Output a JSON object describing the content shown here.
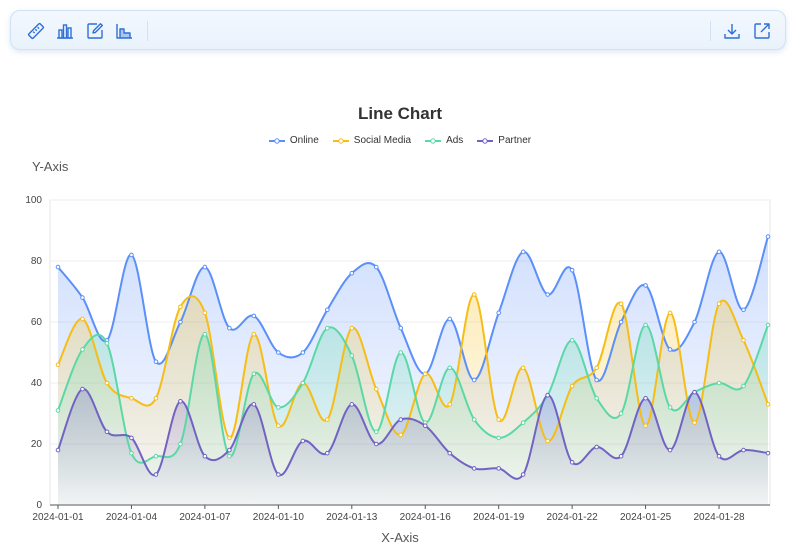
{
  "toolbar": {
    "left_icons": [
      "ruler-icon",
      "bar-chart-icon",
      "edit-icon",
      "area-chart-icon"
    ],
    "right_icons": [
      "download-icon",
      "open-external-icon"
    ],
    "icon_color": "#2f6fd6"
  },
  "chart_data": {
    "type": "line",
    "title": "Line Chart",
    "xlabel": "X-Axis",
    "ylabel": "Y-Axis",
    "ylim": [
      0,
      100
    ],
    "yticks": [
      0,
      20,
      40,
      60,
      80,
      100
    ],
    "grid": true,
    "smooth": true,
    "area_fill": true,
    "legend_position": "top-center",
    "x": [
      "2024-01-01",
      "2024-01-02",
      "2024-01-03",
      "2024-01-04",
      "2024-01-05",
      "2024-01-06",
      "2024-01-07",
      "2024-01-08",
      "2024-01-09",
      "2024-01-10",
      "2024-01-11",
      "2024-01-12",
      "2024-01-13",
      "2024-01-14",
      "2024-01-15",
      "2024-01-16",
      "2024-01-17",
      "2024-01-18",
      "2024-01-19",
      "2024-01-20",
      "2024-01-21",
      "2024-01-22",
      "2024-01-23",
      "2024-01-24",
      "2024-01-25",
      "2024-01-26",
      "2024-01-27",
      "2024-01-28",
      "2024-01-29",
      "2024-01-30"
    ],
    "xticks": [
      "2024-01-01",
      "2024-01-04",
      "2024-01-07",
      "2024-01-10",
      "2024-01-13",
      "2024-01-16",
      "2024-01-19",
      "2024-01-22",
      "2024-01-25",
      "2024-01-28"
    ],
    "series": [
      {
        "name": "Online",
        "color": "#5b8ff9",
        "values": [
          78,
          68,
          54,
          82,
          47,
          60,
          78,
          58,
          62,
          50,
          50,
          64,
          76,
          78,
          58,
          43,
          61,
          41,
          63,
          83,
          69,
          77,
          41,
          60,
          72,
          51,
          60,
          83,
          64,
          88
        ]
      },
      {
        "name": "Social Media",
        "color": "#f6bd16",
        "values": [
          46,
          61,
          40,
          35,
          35,
          65,
          63,
          22,
          56,
          26,
          40,
          28,
          58,
          38,
          23,
          43,
          33,
          69,
          28,
          45,
          21,
          39,
          45,
          66,
          26,
          63,
          27,
          66,
          54,
          33
        ]
      },
      {
        "name": "Ads",
        "color": "#5ad8a6",
        "values": [
          31,
          51,
          53,
          17,
          16,
          20,
          56,
          16,
          43,
          32,
          40,
          58,
          49,
          24,
          50,
          27,
          45,
          28,
          22,
          27,
          36,
          54,
          35,
          30,
          59,
          32,
          37,
          40,
          39,
          59
        ]
      },
      {
        "name": "Partner",
        "color": "#7262c4",
        "values": [
          18,
          38,
          24,
          22,
          10,
          34,
          16,
          18,
          33,
          10,
          21,
          17,
          33,
          20,
          28,
          26,
          17,
          12,
          12,
          10,
          36,
          14,
          19,
          16,
          35,
          18,
          37,
          16,
          18,
          17
        ]
      }
    ]
  }
}
